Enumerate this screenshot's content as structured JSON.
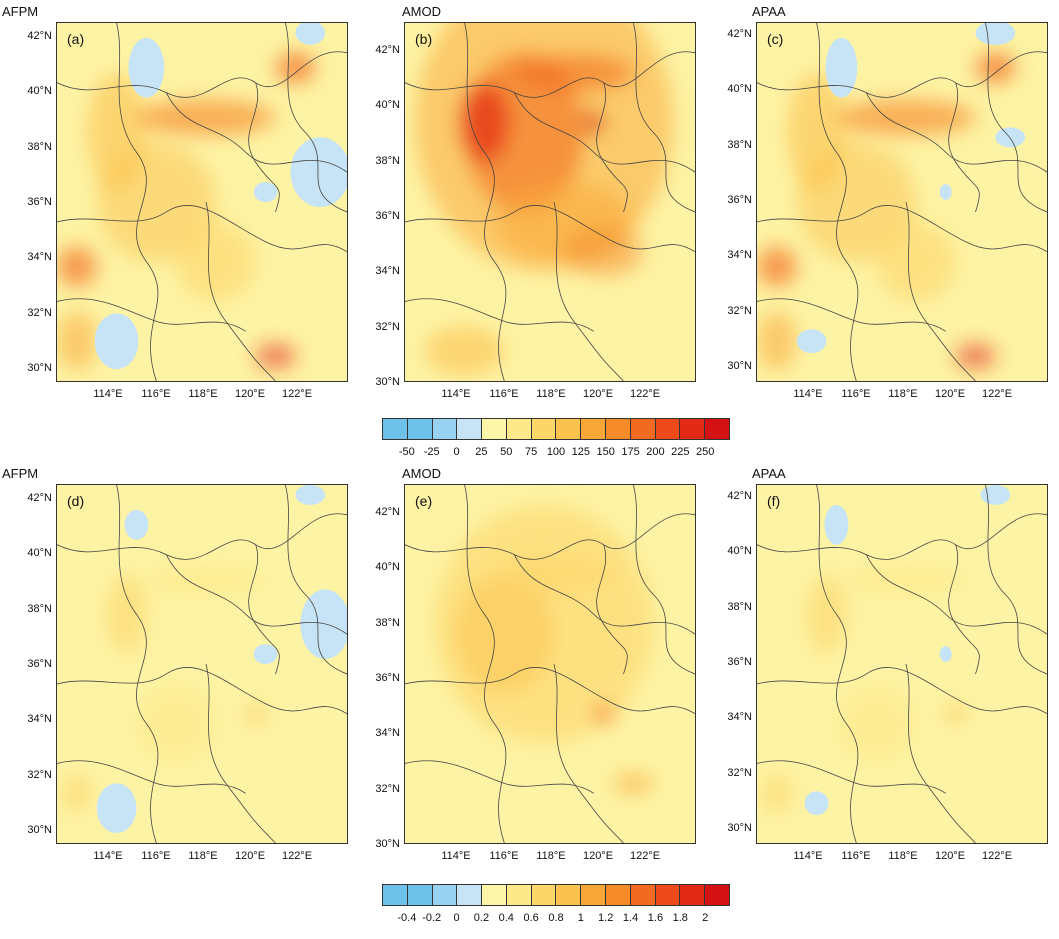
{
  "panels": [
    {
      "title": "AFPM",
      "label": "(a)",
      "row": 0,
      "col": 0,
      "intensity": "med"
    },
    {
      "title": "AMOD",
      "label": "(b)",
      "row": 0,
      "col": 1,
      "intensity": "high"
    },
    {
      "title": "APAA",
      "label": "(c)",
      "row": 0,
      "col": 2,
      "intensity": "med"
    },
    {
      "title": "AFPM",
      "label": "(d)",
      "row": 1,
      "col": 0,
      "intensity": "low"
    },
    {
      "title": "AMOD",
      "label": "(e)",
      "row": 1,
      "col": 1,
      "intensity": "lowmed"
    },
    {
      "title": "APAA",
      "label": "(f)",
      "row": 1,
      "col": 2,
      "intensity": "low"
    }
  ],
  "lat_labels": [
    "42°N",
    "40°N",
    "38°N",
    "36°N",
    "34°N",
    "32°N",
    "30°N"
  ],
  "lon_labels": [
    "114°E",
    "116°E",
    "118°E",
    "120°E",
    "122°E"
  ],
  "colorbar_top": {
    "labels": [
      "-50",
      "-25",
      "0",
      "25",
      "50",
      "75",
      "100",
      "125",
      "150",
      "175",
      "200",
      "225",
      "250"
    ],
    "colors": [
      "#6ec2ea",
      "#99d2f0",
      "#c6e4f5",
      "#fdf6a8",
      "#fde98a",
      "#fdd66a",
      "#fcc24e",
      "#f9a838",
      "#f68b2a",
      "#f26a20",
      "#ec4a1a",
      "#e22a16",
      "#d41216"
    ]
  },
  "colorbar_bottom": {
    "labels": [
      "-0.4",
      "-0.2",
      "0",
      "0.2",
      "0.4",
      "0.6",
      "0.8",
      "1",
      "1.2",
      "1.4",
      "1.6",
      "1.8",
      "2"
    ],
    "colors": [
      "#6ec2ea",
      "#99d2f0",
      "#c6e4f5",
      "#fdf6a8",
      "#fde98a",
      "#fdd66a",
      "#fcc24e",
      "#f9a838",
      "#f68b2a",
      "#f26a20",
      "#ec4a1a",
      "#e22a16",
      "#d41216"
    ]
  }
}
